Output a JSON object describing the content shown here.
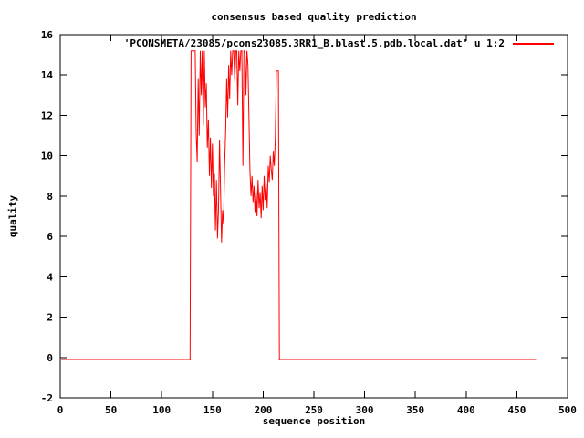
{
  "chart_data": {
    "type": "line",
    "title": "consensus based quality prediction",
    "xlabel": "sequence position",
    "ylabel": "quality",
    "xlim": [
      0,
      500
    ],
    "ylim": [
      -2,
      16
    ],
    "xticks": [
      0,
      50,
      100,
      150,
      200,
      250,
      300,
      350,
      400,
      450,
      500
    ],
    "yticks": [
      -2,
      0,
      2,
      4,
      6,
      8,
      10,
      12,
      14,
      16
    ],
    "grid": false,
    "legend_position": "top-right-inside",
    "legend_label": "'PCONSMETA/23085/pcons23085.3RR1_B.blast.5.pdb.local.dat' u 1:2",
    "background_color": "#ffffff",
    "axis_color": "#000000",
    "series": [
      {
        "name": "PCONSMETA/23085/pcons23085.3RR1_B.blast.5.pdb.local.dat u 1:2",
        "color": "#ff0000",
        "points": [
          [
            1,
            -0.1
          ],
          [
            128,
            -0.1
          ],
          [
            129,
            15.2
          ],
          [
            130,
            15.2
          ],
          [
            131,
            15.2
          ],
          [
            132,
            15.2
          ],
          [
            133,
            15.2
          ],
          [
            134,
            11.1
          ],
          [
            135,
            9.7
          ],
          [
            136,
            13.8
          ],
          [
            137,
            11.0
          ],
          [
            138,
            15.2
          ],
          [
            139,
            13.0
          ],
          [
            140,
            15.2
          ],
          [
            141,
            11.5
          ],
          [
            142,
            15.2
          ],
          [
            143,
            12.4
          ],
          [
            144,
            13.6
          ],
          [
            145,
            10.4
          ],
          [
            146,
            11.8
          ],
          [
            147,
            9.0
          ],
          [
            148,
            10.9
          ],
          [
            149,
            8.4
          ],
          [
            150,
            10.6
          ],
          [
            151,
            8.0
          ],
          [
            152,
            9.1
          ],
          [
            153,
            6.3
          ],
          [
            154,
            8.8
          ],
          [
            155,
            5.9
          ],
          [
            156,
            7.4
          ],
          [
            157,
            10.8
          ],
          [
            158,
            8.3
          ],
          [
            159,
            5.7
          ],
          [
            160,
            7.3
          ],
          [
            161,
            6.6
          ],
          [
            162,
            9.4
          ],
          [
            163,
            11.2
          ],
          [
            164,
            13.8
          ],
          [
            165,
            11.9
          ],
          [
            166,
            14.5
          ],
          [
            167,
            12.8
          ],
          [
            168,
            15.2
          ],
          [
            169,
            14.0
          ],
          [
            170,
            15.2
          ],
          [
            171,
            15.2
          ],
          [
            172,
            13.7
          ],
          [
            173,
            15.2
          ],
          [
            174,
            15.2
          ],
          [
            175,
            12.5
          ],
          [
            176,
            15.2
          ],
          [
            177,
            14.2
          ],
          [
            178,
            15.2
          ],
          [
            179,
            15.2
          ],
          [
            180,
            9.5
          ],
          [
            181,
            15.2
          ],
          [
            182,
            15.2
          ],
          [
            183,
            13.0
          ],
          [
            184,
            15.2
          ],
          [
            185,
            14.5
          ],
          [
            186,
            12.0
          ],
          [
            187,
            9.3
          ],
          [
            188,
            8.0
          ],
          [
            189,
            9.0
          ],
          [
            190,
            7.7
          ],
          [
            191,
            8.5
          ],
          [
            192,
            7.2
          ],
          [
            193,
            8.3
          ],
          [
            194,
            7.0
          ],
          [
            195,
            8.8
          ],
          [
            196,
            7.4
          ],
          [
            197,
            8.2
          ],
          [
            198,
            6.9
          ],
          [
            199,
            8.5
          ],
          [
            200,
            7.3
          ],
          [
            201,
            9.0
          ],
          [
            202,
            7.8
          ],
          [
            203,
            8.6
          ],
          [
            204,
            7.4
          ],
          [
            205,
            9.5
          ],
          [
            206,
            8.7
          ],
          [
            207,
            10.0
          ],
          [
            208,
            9.3
          ],
          [
            209,
            8.8
          ],
          [
            210,
            10.2
          ],
          [
            211,
            9.5
          ],
          [
            212,
            10.8
          ],
          [
            213,
            14.2
          ],
          [
            214,
            14.2
          ],
          [
            215,
            14.2
          ],
          [
            216,
            -0.1
          ],
          [
            469,
            -0.1
          ]
        ]
      }
    ]
  }
}
